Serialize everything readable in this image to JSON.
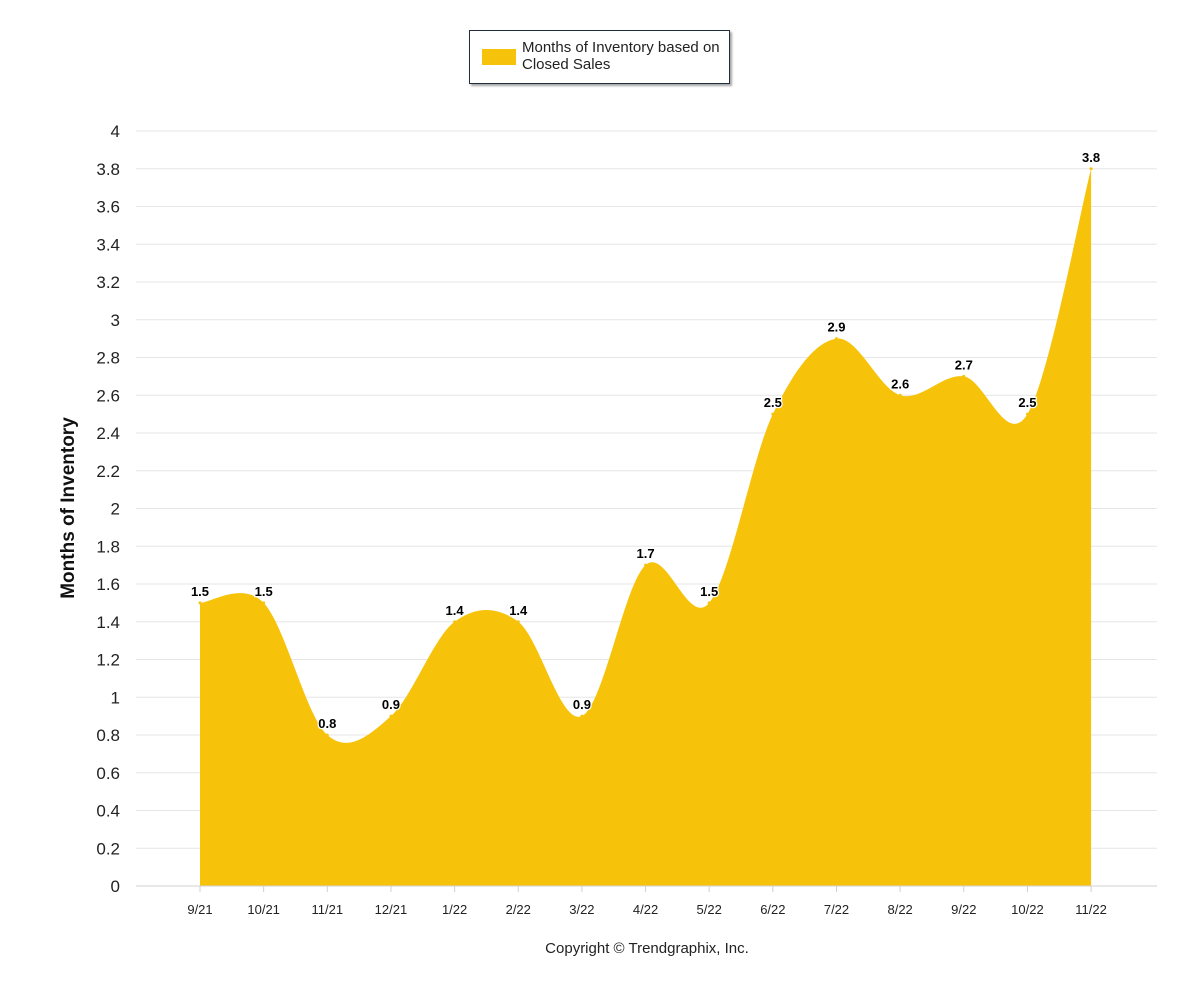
{
  "legend": {
    "label": "Months of Inventory based on Closed Sales"
  },
  "copyright": "Copyright © Trendgraphix, Inc.",
  "colors": {
    "series": "#f7c30a",
    "grid": "#e6e6e6",
    "axis": "#d0d0d0",
    "text": "#222222"
  },
  "chart_data": {
    "type": "area",
    "ylabel": "Months of Inventory",
    "xlabel": "",
    "ylim": [
      0,
      4
    ],
    "yticks": [
      0,
      0.2,
      0.4,
      0.6,
      0.8,
      1,
      1.2,
      1.4,
      1.6,
      1.8,
      2,
      2.2,
      2.4,
      2.6,
      2.8,
      3,
      3.2,
      3.4,
      3.6,
      3.8,
      4
    ],
    "ytick_labels": [
      "0",
      "0.2",
      "0.4",
      "0.6",
      "0.8",
      "1",
      "1.2",
      "1.4",
      "1.6",
      "1.8",
      "2",
      "2.2",
      "2.4",
      "2.6",
      "2.8",
      "3",
      "3.2",
      "3.4",
      "3.6",
      "3.8",
      "4"
    ],
    "categories": [
      "9/21",
      "10/21",
      "11/21",
      "12/21",
      "1/22",
      "2/22",
      "3/22",
      "4/22",
      "5/22",
      "6/22",
      "7/22",
      "8/22",
      "9/22",
      "10/22",
      "11/22"
    ],
    "grid": true,
    "legend_position": "top-center",
    "series": [
      {
        "name": "Months of Inventory based on Closed Sales",
        "values": [
          1.5,
          1.5,
          0.8,
          0.9,
          1.4,
          1.4,
          0.9,
          1.7,
          1.5,
          2.5,
          2.9,
          2.6,
          2.7,
          2.5,
          3.8
        ],
        "labels": [
          "1.5",
          "1.5",
          "0.8",
          "0.9",
          "1.4",
          "1.4",
          "0.9",
          "1.7",
          "1.5",
          "2.5",
          "2.9",
          "2.6",
          "2.7",
          "2.5",
          "3.8"
        ]
      }
    ]
  }
}
